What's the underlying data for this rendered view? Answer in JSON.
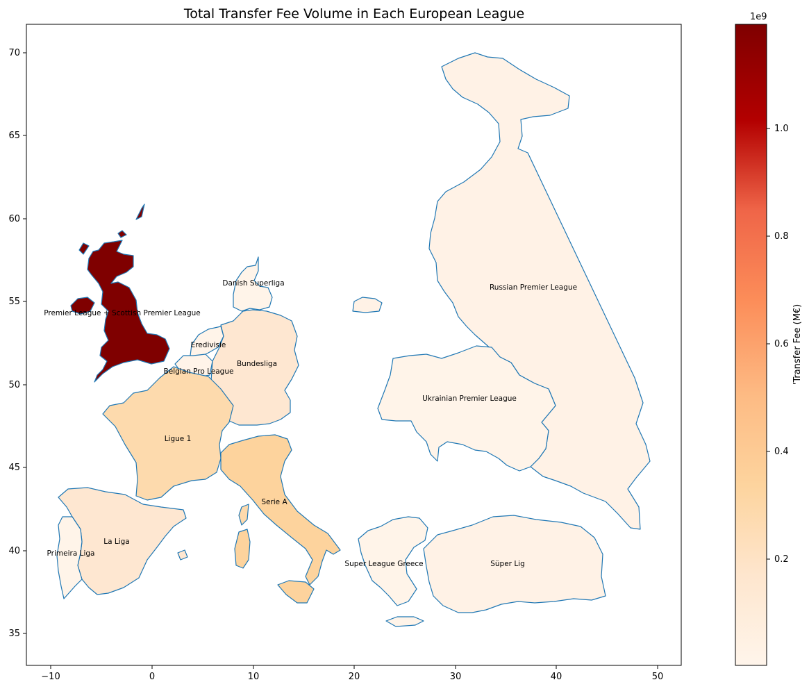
{
  "chart_data": {
    "type": "choropleth",
    "title": "Total Transfer Fee Volume in Each European League",
    "x_ticks": [
      "−10",
      "0",
      "10",
      "20",
      "30",
      "40",
      "50"
    ],
    "y_ticks": [
      "35",
      "40",
      "45",
      "50",
      "55",
      "60",
      "65",
      "70"
    ],
    "xlim": [
      -12.5,
      52.5
    ],
    "ylim": [
      33.0,
      71.7
    ],
    "colorbar": {
      "label": "'Transfer Fee (M€)",
      "offset_text": "1e9",
      "ticks": [
        "0.2",
        "0.4",
        "0.6",
        "0.8",
        "1.0"
      ],
      "tick_values": [
        0.2,
        0.4,
        0.6,
        0.8,
        1.0
      ],
      "min": 0.0,
      "max": 1.19,
      "colormap": "OrRd"
    },
    "regions": [
      {
        "id": "uk",
        "label": "Premier League + Scottish Premier League",
        "value": 1.19
      },
      {
        "id": "denmark",
        "label": "Danish Superliga",
        "value": 0.01
      },
      {
        "id": "netherlands",
        "label": "Eredivisie",
        "value": 0.01
      },
      {
        "id": "belgium",
        "label": "Belgian Pro League",
        "value": 0.01
      },
      {
        "id": "germany",
        "label": "Bundesliga",
        "value": 0.15
      },
      {
        "id": "france",
        "label": "Ligue 1",
        "value": 0.28
      },
      {
        "id": "italy",
        "label": "Serie A",
        "value": 0.34
      },
      {
        "id": "spain",
        "label": "La Liga",
        "value": 0.15
      },
      {
        "id": "portugal",
        "label": "Primeira Liga",
        "value": 0.01
      },
      {
        "id": "russia",
        "label": "Russian Premier League",
        "value": 0.03
      },
      {
        "id": "ukraine",
        "label": "Ukrainian Premier League",
        "value": 0.01
      },
      {
        "id": "greece",
        "label": "Super League Greece",
        "value": 0.01
      },
      {
        "id": "turkey",
        "label": "Süper Lig",
        "value": 0.03
      }
    ]
  }
}
